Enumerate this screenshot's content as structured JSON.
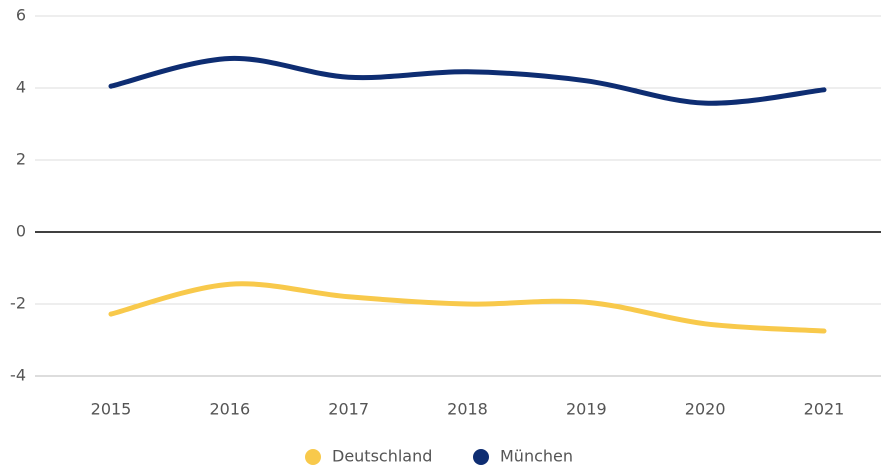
{
  "chart_data": {
    "type": "line",
    "categories": [
      "2015",
      "2016",
      "2017",
      "2018",
      "2019",
      "2020",
      "2021"
    ],
    "series": [
      {
        "name": "Deutschland",
        "color": "#f8c94b",
        "values": [
          -2.28,
          -1.45,
          -1.8,
          -2.0,
          -1.95,
          -2.55,
          -2.75
        ]
      },
      {
        "name": "München",
        "color": "#0e2d72",
        "values": [
          4.05,
          4.82,
          4.3,
          4.45,
          4.2,
          3.58,
          3.95
        ]
      }
    ],
    "ylim": [
      -4,
      6
    ],
    "yticks": [
      -4,
      -2,
      0,
      2,
      4,
      6
    ],
    "grid": true,
    "legend": "bottom"
  }
}
